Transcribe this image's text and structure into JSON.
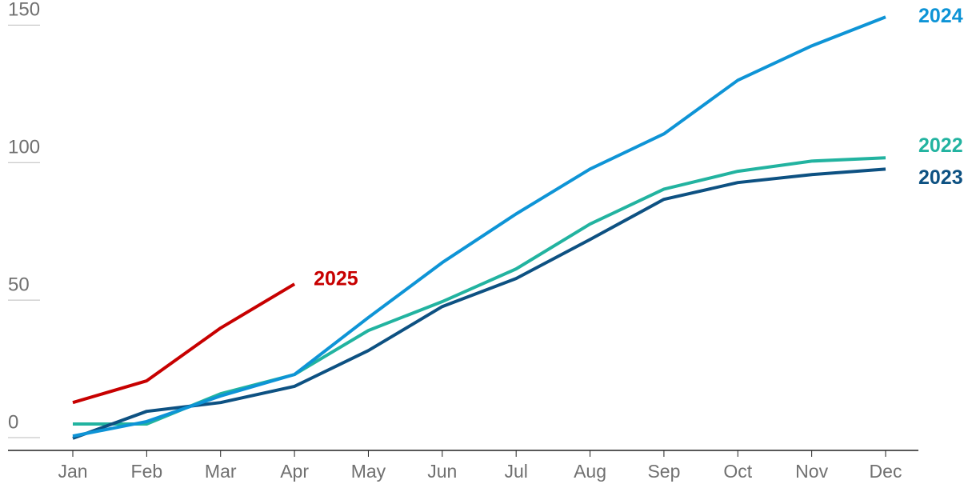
{
  "chart_data": {
    "type": "line",
    "categories": [
      "Jan",
      "Feb",
      "Mar",
      "Apr",
      "May",
      "Jun",
      "Jul",
      "Aug",
      "Sep",
      "Oct",
      "Nov",
      "Dec"
    ],
    "series": [
      {
        "name": "2022",
        "color": "#22b3a0",
        "values": [
          9.6,
          9.6,
          20.6,
          27.6,
          43.6,
          54.1,
          66,
          82.3,
          95,
          101.5,
          105.2,
          106.4
        ]
      },
      {
        "name": "2023",
        "color": "#0d5182",
        "values": [
          4.4,
          14.2,
          17.4,
          23.3,
          36.3,
          52.3,
          62.5,
          76.7,
          91.3,
          97.4,
          100.3,
          102.3
        ]
      },
      {
        "name": "2024",
        "color": "#0e94d6",
        "values": [
          5.2,
          10.5,
          19.8,
          27.6,
          48.3,
          68.3,
          86,
          102.3,
          115.1,
          134.6,
          147.1,
          157.6
        ]
      },
      {
        "name": "2025",
        "color": "#c70000",
        "values": [
          17.4,
          25.3,
          44.5,
          60.5,
          null,
          null,
          null,
          null,
          null,
          null,
          null,
          null
        ]
      }
    ],
    "ylim": [
      0,
      160
    ],
    "yticks": [
      0,
      50,
      100,
      150
    ],
    "grid": true
  }
}
